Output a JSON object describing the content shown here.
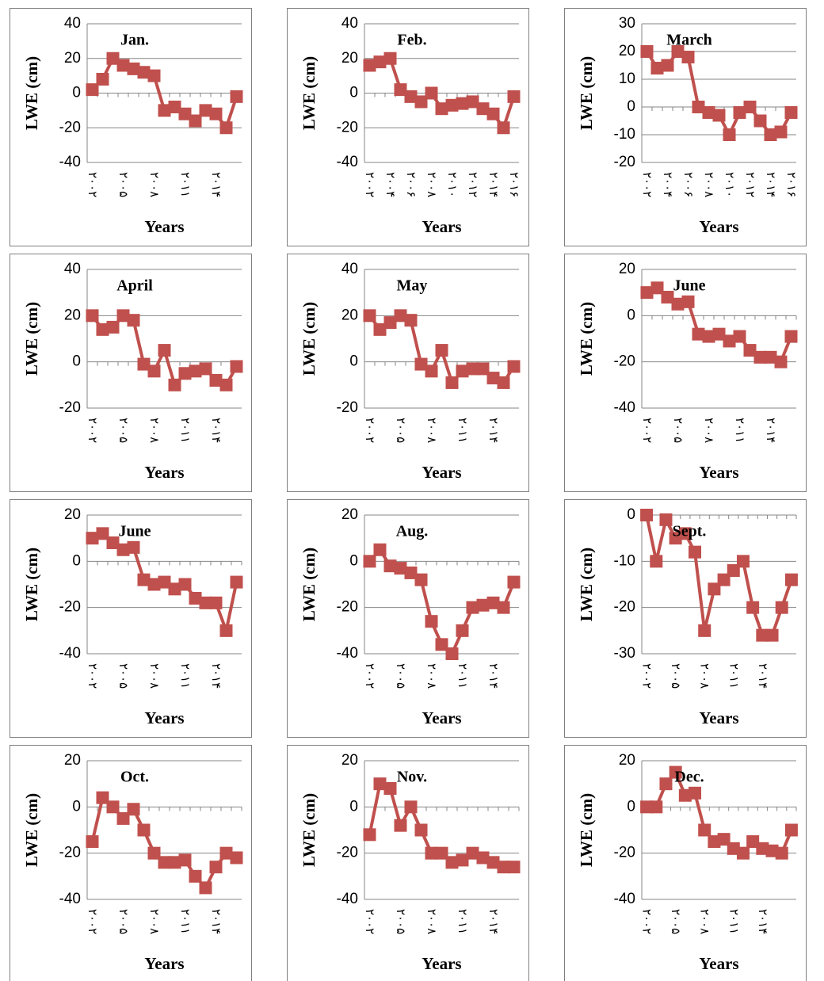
{
  "chart_data": [
    {
      "type": "line",
      "title": "Jan.",
      "y_label": "LWE (cm)",
      "x_label": "Years",
      "color": "#c0504d",
      "grid": true,
      "categories": [
        "۲۰۰۲",
        null,
        null,
        "۲۰۰۵",
        null,
        null,
        "۲۰۰۸",
        null,
        null,
        "۲۰۱۱",
        null,
        null,
        "۲۰۱۴",
        null,
        null
      ],
      "values": [
        2,
        8,
        20,
        16,
        14,
        12,
        10,
        -10,
        -8,
        -12,
        -16,
        -10,
        -12,
        -20,
        -2
      ],
      "ylim": [
        -40,
        40
      ],
      "yticks": [
        -40,
        -20,
        0,
        20,
        40
      ]
    },
    {
      "type": "line",
      "title": "Feb.",
      "y_label": "LWE (cm)",
      "x_label": "Years",
      "color": "#c0504d",
      "grid": true,
      "categories": [
        "۲۰۰۲",
        null,
        "۲۰۰۴",
        null,
        "۲۰۰۶",
        null,
        "۲۰۰۸",
        null,
        "۲۰۱۰",
        null,
        "۲۰۱۲",
        null,
        "۲۰۱۴",
        null,
        "۲۰۱۶"
      ],
      "values": [
        16,
        18,
        20,
        2,
        -2,
        -5,
        0,
        -9,
        -7,
        -6,
        -5,
        -9,
        -12,
        -20,
        -2
      ],
      "ylim": [
        -40,
        40
      ],
      "yticks": [
        -40,
        -20,
        0,
        20,
        40
      ]
    },
    {
      "type": "line",
      "title": "March",
      "y_label": "LWE (cm)",
      "x_label": "Years",
      "color": "#c0504d",
      "grid": true,
      "categories": [
        "۲۰۰۲",
        null,
        "۲۰۰۴",
        null,
        "۲۰۰۶",
        null,
        "۲۰۰۸",
        null,
        "۲۰۱۰",
        null,
        "۲۰۱۲",
        null,
        "۲۰۱۴",
        null,
        "۲۰۱۶"
      ],
      "values": [
        20,
        14,
        15,
        20,
        18,
        0,
        -2,
        -3,
        -10,
        -2,
        0,
        -5,
        -10,
        -9,
        -2
      ],
      "ylim": [
        -20,
        30
      ],
      "yticks": [
        -20,
        -10,
        0,
        10,
        20,
        30
      ]
    },
    {
      "type": "line",
      "title": "April",
      "y_label": "LWE (cm)",
      "x_label": "Years",
      "color": "#c0504d",
      "grid": true,
      "categories": [
        "۲۰۰۲",
        null,
        null,
        "۲۰۰۵",
        null,
        null,
        "۲۰۰۸",
        null,
        null,
        "۲۰۱۱",
        null,
        null,
        "۲۰۱۴",
        null,
        null
      ],
      "values": [
        20,
        14,
        15,
        20,
        18,
        -1,
        -4,
        5,
        -10,
        -5,
        -4,
        -3,
        -8,
        -10,
        -2
      ],
      "ylim": [
        -20,
        40
      ],
      "yticks": [
        -20,
        0,
        20,
        40
      ]
    },
    {
      "type": "line",
      "title": "May",
      "y_label": "LWE (cm)",
      "x_label": "Years",
      "color": "#c0504d",
      "grid": true,
      "categories": [
        "۲۰۰۲",
        null,
        null,
        "۲۰۰۵",
        null,
        null,
        "۲۰۰۸",
        null,
        null,
        "۲۰۱۱",
        null,
        null,
        "۲۰۱۴",
        null,
        null
      ],
      "values": [
        20,
        14,
        17,
        20,
        18,
        -1,
        -4,
        5,
        -9,
        -4,
        -3,
        -3,
        -7,
        -9,
        -2
      ],
      "ylim": [
        -20,
        40
      ],
      "yticks": [
        -20,
        0,
        20,
        40
      ]
    },
    {
      "type": "line",
      "title": "June",
      "y_label": "LWE (cm)",
      "x_label": "Years",
      "color": "#c0504d",
      "grid": true,
      "categories": [
        "۲۰۰۲",
        null,
        null,
        "۲۰۰۵",
        null,
        null,
        "۲۰۰۸",
        null,
        null,
        "۲۰۱۱",
        null,
        null,
        "۲۰۱۴",
        null,
        null
      ],
      "values": [
        10,
        12,
        8,
        5,
        6,
        -8,
        -9,
        -8,
        -11,
        -9,
        -15,
        -18,
        -18,
        -20,
        -9
      ],
      "ylim": [
        -40,
        20
      ],
      "yticks": [
        -40,
        -20,
        0,
        20
      ]
    },
    {
      "type": "line",
      "title": "June",
      "y_label": "LWE (cm)",
      "x_label": "Years",
      "color": "#c0504d",
      "grid": true,
      "categories": [
        "۲۰۰۲",
        null,
        null,
        "۲۰۰۵",
        null,
        null,
        "۲۰۰۸",
        null,
        null,
        "۲۰۱۱",
        null,
        null,
        "۲۰۱۴",
        null,
        null
      ],
      "values": [
        10,
        12,
        8,
        5,
        6,
        -8,
        -10,
        -9,
        -12,
        -10,
        -16,
        -18,
        -18,
        -30,
        -9
      ],
      "ylim": [
        -40,
        20
      ],
      "yticks": [
        -40,
        -20,
        0,
        20
      ]
    },
    {
      "type": "line",
      "title": "Aug.",
      "y_label": "LWE (cm)",
      "x_label": "Years",
      "color": "#c0504d",
      "grid": true,
      "categories": [
        "۲۰۰۲",
        null,
        null,
        "۲۰۰۵",
        null,
        null,
        "۲۰۰۸",
        null,
        null,
        "۲۰۱۱",
        null,
        null,
        "۲۰۱۴",
        null,
        null
      ],
      "values": [
        0,
        5,
        -2,
        -3,
        -5,
        -8,
        -26,
        -36,
        -40,
        -30,
        -20,
        -19,
        -18,
        -20,
        -9
      ],
      "ylim": [
        -40,
        20
      ],
      "yticks": [
        -40,
        -20,
        0,
        20
      ]
    },
    {
      "type": "line",
      "title": "Sept.",
      "y_label": "LWE (cm)",
      "x_label": "Years",
      "color": "#c0504d",
      "grid": true,
      "categories": [
        "۲۰۰۲",
        null,
        null,
        "۲۰۰۵",
        null,
        null,
        "۲۰۰۸",
        null,
        null,
        "۲۰۱۱",
        null,
        null,
        "۲۰۱۴",
        null,
        null,
        null
      ],
      "values": [
        0,
        -10,
        -1,
        -5,
        -4,
        -8,
        -25,
        -16,
        -14,
        -12,
        -10,
        -20,
        -26,
        -26,
        -20,
        -14
      ],
      "ylim": [
        -30,
        0
      ],
      "yticks": [
        -30,
        -20,
        -10,
        0
      ]
    },
    {
      "type": "line",
      "title": "Oct.",
      "y_label": "LWE (cm)",
      "x_label": "Years",
      "color": "#c0504d",
      "grid": true,
      "categories": [
        "۲۰۰۲",
        null,
        null,
        "۲۰۰۵",
        null,
        null,
        "۲۰۰۸",
        null,
        null,
        "۲۰۱۱",
        null,
        null,
        "۲۰۱۴",
        null,
        null
      ],
      "values": [
        -15,
        4,
        0,
        -5,
        -1,
        -10,
        -20,
        -24,
        -24,
        -23,
        -30,
        -35,
        -26,
        -20,
        -22
      ],
      "ylim": [
        -40,
        20
      ],
      "yticks": [
        -40,
        -20,
        0,
        20
      ]
    },
    {
      "type": "line",
      "title": "Nov.",
      "y_label": "LWE (cm)",
      "x_label": "Years",
      "color": "#c0504d",
      "grid": true,
      "categories": [
        "۲۰۰۲",
        null,
        null,
        "۲۰۰۵",
        null,
        null,
        "۲۰۰۸",
        null,
        null,
        "۲۰۱۱",
        null,
        null,
        "۲۰۱۴",
        null,
        null
      ],
      "values": [
        -12,
        10,
        8,
        -8,
        0,
        -10,
        -20,
        -20,
        -24,
        -23,
        -20,
        -22,
        -24,
        -26,
        -26
      ],
      "ylim": [
        -40,
        20
      ],
      "yticks": [
        -40,
        -20,
        0,
        20
      ]
    },
    {
      "type": "line",
      "title": "Dec.",
      "y_label": "LWE (cm)",
      "x_label": "Years",
      "color": "#c0504d",
      "grid": true,
      "categories": [
        "۲۰۰۲",
        null,
        null,
        "۲۰۰۵",
        null,
        null,
        "۲۰۰۸",
        null,
        null,
        "۲۰۱۱",
        null,
        null,
        "۲۰۱۴",
        null,
        null,
        null
      ],
      "values": [
        0,
        0,
        10,
        15,
        5,
        6,
        -10,
        -15,
        -14,
        -18,
        -20,
        -15,
        -18,
        -19,
        -20,
        -10
      ],
      "ylim": [
        -40,
        20
      ],
      "yticks": [
        -40,
        -20,
        0,
        20
      ]
    }
  ]
}
